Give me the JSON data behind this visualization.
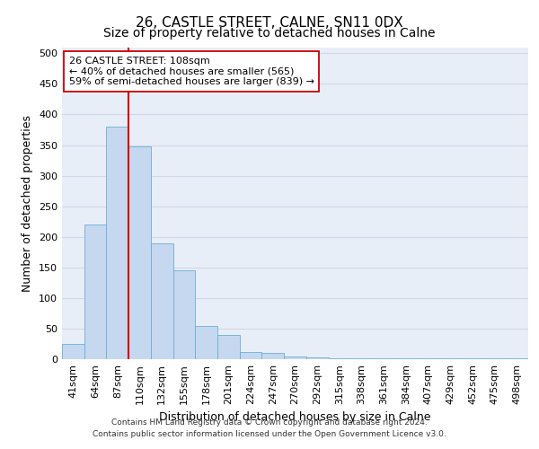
{
  "title_line1": "26, CASTLE STREET, CALNE, SN11 0DX",
  "title_line2": "Size of property relative to detached houses in Calne",
  "xlabel": "Distribution of detached houses by size in Calne",
  "ylabel": "Number of detached properties",
  "bar_labels": [
    "41sqm",
    "64sqm",
    "87sqm",
    "110sqm",
    "132sqm",
    "155sqm",
    "178sqm",
    "201sqm",
    "224sqm",
    "247sqm",
    "270sqm",
    "292sqm",
    "315sqm",
    "338sqm",
    "361sqm",
    "384sqm",
    "407sqm",
    "429sqm",
    "452sqm",
    "475sqm",
    "498sqm"
  ],
  "bar_values": [
    25,
    220,
    380,
    348,
    190,
    145,
    55,
    40,
    12,
    10,
    5,
    3,
    2,
    2,
    1,
    2,
    1,
    2,
    1,
    2,
    1
  ],
  "bar_color": "#c5d8f0",
  "bar_edge_color": "#6baed6",
  "vline_index": 3,
  "vline_color": "#cc0000",
  "annotation_text": "26 CASTLE STREET: 108sqm\n← 40% of detached houses are smaller (565)\n59% of semi-detached houses are larger (839) →",
  "annotation_box_facecolor": "#ffffff",
  "annotation_box_edgecolor": "#cc0000",
  "ylim": [
    0,
    510
  ],
  "yticks": [
    0,
    50,
    100,
    150,
    200,
    250,
    300,
    350,
    400,
    450,
    500
  ],
  "grid_color": "#d0d8e8",
  "bg_color": "#e8eef8",
  "footer_line1": "Contains HM Land Registry data © Crown copyright and database right 2024.",
  "footer_line2": "Contains public sector information licensed under the Open Government Licence v3.0.",
  "title_fontsize": 11,
  "subtitle_fontsize": 10,
  "axis_label_fontsize": 9,
  "tick_fontsize": 8,
  "annotation_fontsize": 8,
  "footer_fontsize": 6.5
}
